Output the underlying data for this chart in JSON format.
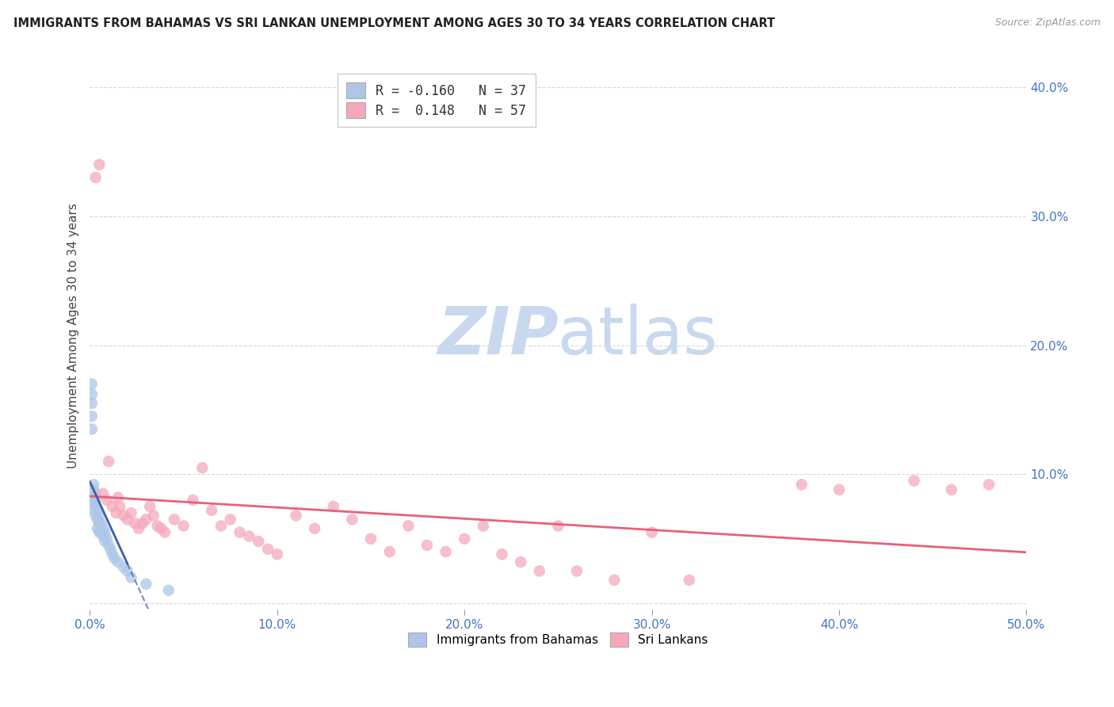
{
  "title": "IMMIGRANTS FROM BAHAMAS VS SRI LANKAN UNEMPLOYMENT AMONG AGES 30 TO 34 YEARS CORRELATION CHART",
  "source": "Source: ZipAtlas.com",
  "ylabel": "Unemployment Among Ages 30 to 34 years",
  "xlim": [
    0.0,
    0.5
  ],
  "ylim": [
    -0.005,
    0.42
  ],
  "xticks": [
    0.0,
    0.1,
    0.2,
    0.3,
    0.4,
    0.5
  ],
  "yticks": [
    0.0,
    0.1,
    0.2,
    0.3,
    0.4
  ],
  "xticklabels": [
    "0.0%",
    "10.0%",
    "20.0%",
    "30.0%",
    "40.0%",
    "50.0%"
  ],
  "yticklabels_right": [
    "",
    "10.0%",
    "20.0%",
    "30.0%",
    "40.0%"
  ],
  "legend_R_bahamas": "-0.160",
  "legend_N_bahamas": "37",
  "legend_R_srilanka": "0.148",
  "legend_N_srilanka": "57",
  "bahamas_color": "#adc6e8",
  "srilanka_color": "#f5a8bb",
  "bahamas_line_color": "#3a5fa8",
  "srilanka_line_color": "#e8607a",
  "background_color": "#ffffff",
  "grid_color": "#cccccc",
  "watermark_zip": "ZIP",
  "watermark_atlas": "atlas",
  "watermark_color_zip": "#c5d8f0",
  "watermark_color_atlas": "#c5d8f0",
  "bahamas_scatter_x": [
    0.001,
    0.001,
    0.001,
    0.001,
    0.001,
    0.002,
    0.002,
    0.002,
    0.002,
    0.002,
    0.003,
    0.003,
    0.003,
    0.003,
    0.004,
    0.004,
    0.004,
    0.005,
    0.005,
    0.005,
    0.006,
    0.006,
    0.007,
    0.007,
    0.008,
    0.008,
    0.009,
    0.01,
    0.011,
    0.012,
    0.013,
    0.015,
    0.018,
    0.02,
    0.022,
    0.03,
    0.042
  ],
  "bahamas_scatter_y": [
    0.17,
    0.162,
    0.155,
    0.145,
    0.135,
    0.092,
    0.088,
    0.082,
    0.078,
    0.072,
    0.085,
    0.08,
    0.075,
    0.068,
    0.072,
    0.065,
    0.058,
    0.068,
    0.062,
    0.055,
    0.062,
    0.055,
    0.058,
    0.052,
    0.055,
    0.048,
    0.05,
    0.045,
    0.042,
    0.038,
    0.035,
    0.032,
    0.028,
    0.025,
    0.02,
    0.015,
    0.01
  ],
  "srilanka_scatter_x": [
    0.003,
    0.005,
    0.007,
    0.009,
    0.01,
    0.012,
    0.014,
    0.015,
    0.016,
    0.018,
    0.02,
    0.022,
    0.024,
    0.026,
    0.028,
    0.03,
    0.032,
    0.034,
    0.036,
    0.038,
    0.04,
    0.045,
    0.05,
    0.055,
    0.06,
    0.065,
    0.07,
    0.075,
    0.08,
    0.085,
    0.09,
    0.095,
    0.1,
    0.11,
    0.12,
    0.13,
    0.14,
    0.15,
    0.16,
    0.17,
    0.18,
    0.19,
    0.2,
    0.21,
    0.22,
    0.23,
    0.24,
    0.25,
    0.26,
    0.28,
    0.3,
    0.32,
    0.38,
    0.4,
    0.44,
    0.46,
    0.48
  ],
  "srilanka_scatter_y": [
    0.33,
    0.34,
    0.085,
    0.08,
    0.11,
    0.075,
    0.07,
    0.082,
    0.075,
    0.068,
    0.065,
    0.07,
    0.062,
    0.058,
    0.062,
    0.065,
    0.075,
    0.068,
    0.06,
    0.058,
    0.055,
    0.065,
    0.06,
    0.08,
    0.105,
    0.072,
    0.06,
    0.065,
    0.055,
    0.052,
    0.048,
    0.042,
    0.038,
    0.068,
    0.058,
    0.075,
    0.065,
    0.05,
    0.04,
    0.06,
    0.045,
    0.04,
    0.05,
    0.06,
    0.038,
    0.032,
    0.025,
    0.06,
    0.025,
    0.018,
    0.055,
    0.018,
    0.092,
    0.088,
    0.095,
    0.088,
    0.092
  ]
}
